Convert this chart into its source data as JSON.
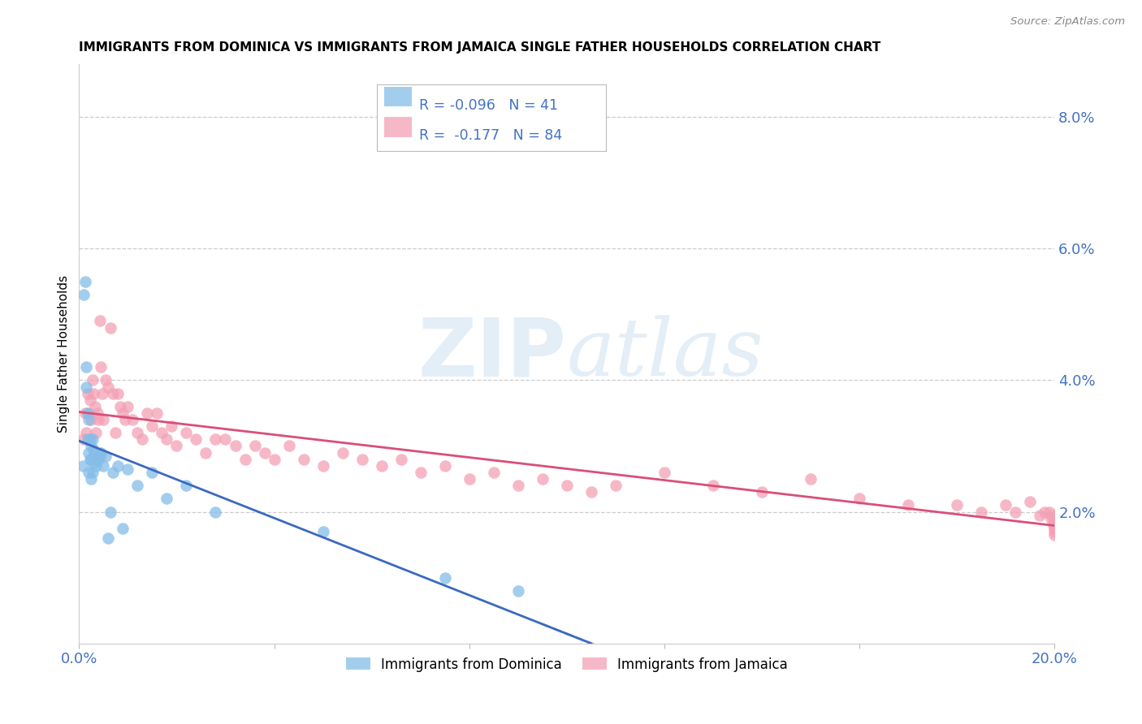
{
  "title": "IMMIGRANTS FROM DOMINICA VS IMMIGRANTS FROM JAMAICA SINGLE FATHER HOUSEHOLDS CORRELATION CHART",
  "source": "Source: ZipAtlas.com",
  "ylabel": "Single Father Households",
  "xlim": [
    0.0,
    0.2
  ],
  "ylim": [
    0.0,
    0.088
  ],
  "yticks_right": [
    0.02,
    0.04,
    0.06,
    0.08
  ],
  "ytick_labels_right": [
    "2.0%",
    "4.0%",
    "6.0%",
    "8.0%"
  ],
  "dominica_color": "#85bde8",
  "jamaica_color": "#f4a0b5",
  "dominica_line_color": "#3a6abf",
  "jamaica_line_color": "#d94f78",
  "background_color": "#ffffff",
  "grid_color": "#cccccc",
  "axis_color": "#4472c4",
  "title_fontsize": 11,
  "dominica_x": [
    0.0008,
    0.001,
    0.0012,
    0.0015,
    0.0015,
    0.0018,
    0.0018,
    0.002,
    0.002,
    0.002,
    0.0022,
    0.0022,
    0.0025,
    0.0025,
    0.0025,
    0.0028,
    0.0028,
    0.003,
    0.003,
    0.0032,
    0.0035,
    0.0038,
    0.004,
    0.0042,
    0.0045,
    0.005,
    0.0055,
    0.006,
    0.0065,
    0.007,
    0.008,
    0.009,
    0.01,
    0.012,
    0.015,
    0.018,
    0.022,
    0.028,
    0.05,
    0.075,
    0.09
  ],
  "dominica_y": [
    0.027,
    0.053,
    0.055,
    0.042,
    0.039,
    0.035,
    0.031,
    0.034,
    0.029,
    0.026,
    0.031,
    0.028,
    0.03,
    0.028,
    0.025,
    0.031,
    0.026,
    0.0295,
    0.0275,
    0.029,
    0.027,
    0.028,
    0.028,
    0.0285,
    0.029,
    0.027,
    0.0285,
    0.016,
    0.02,
    0.026,
    0.027,
    0.0175,
    0.0265,
    0.024,
    0.026,
    0.022,
    0.024,
    0.02,
    0.017,
    0.01,
    0.008
  ],
  "jamaica_x": [
    0.001,
    0.0012,
    0.0015,
    0.0018,
    0.002,
    0.0022,
    0.0025,
    0.0028,
    0.003,
    0.0032,
    0.0035,
    0.0038,
    0.004,
    0.0042,
    0.0045,
    0.0048,
    0.005,
    0.0055,
    0.006,
    0.0065,
    0.007,
    0.0075,
    0.008,
    0.0085,
    0.009,
    0.0095,
    0.01,
    0.011,
    0.012,
    0.013,
    0.014,
    0.015,
    0.016,
    0.017,
    0.018,
    0.019,
    0.02,
    0.022,
    0.024,
    0.026,
    0.028,
    0.03,
    0.032,
    0.034,
    0.036,
    0.038,
    0.04,
    0.043,
    0.046,
    0.05,
    0.054,
    0.058,
    0.062,
    0.066,
    0.07,
    0.075,
    0.08,
    0.085,
    0.09,
    0.095,
    0.1,
    0.105,
    0.11,
    0.12,
    0.13,
    0.14,
    0.15,
    0.16,
    0.17,
    0.18,
    0.185,
    0.19,
    0.192,
    0.195,
    0.197,
    0.198,
    0.199,
    0.1992,
    0.1995,
    0.1997,
    0.1998,
    0.1999,
    0.2,
    0.2
  ],
  "jamaica_y": [
    0.031,
    0.035,
    0.032,
    0.038,
    0.035,
    0.037,
    0.034,
    0.04,
    0.038,
    0.036,
    0.032,
    0.035,
    0.034,
    0.049,
    0.042,
    0.038,
    0.034,
    0.04,
    0.039,
    0.048,
    0.038,
    0.032,
    0.038,
    0.036,
    0.035,
    0.034,
    0.036,
    0.034,
    0.032,
    0.031,
    0.035,
    0.033,
    0.035,
    0.032,
    0.031,
    0.033,
    0.03,
    0.032,
    0.031,
    0.029,
    0.031,
    0.031,
    0.03,
    0.028,
    0.03,
    0.029,
    0.028,
    0.03,
    0.028,
    0.027,
    0.029,
    0.028,
    0.027,
    0.028,
    0.026,
    0.027,
    0.025,
    0.026,
    0.024,
    0.025,
    0.024,
    0.023,
    0.024,
    0.026,
    0.024,
    0.023,
    0.025,
    0.022,
    0.021,
    0.021,
    0.02,
    0.021,
    0.02,
    0.0215,
    0.0195,
    0.02,
    0.02,
    0.019,
    0.0195,
    0.0185,
    0.018,
    0.0175,
    0.017,
    0.0165
  ]
}
